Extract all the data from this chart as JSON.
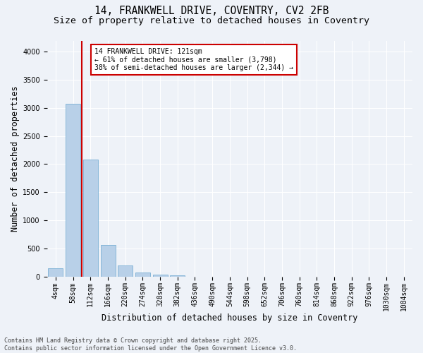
{
  "title_line1": "14, FRANKWELL DRIVE, COVENTRY, CV2 2FB",
  "title_line2": "Size of property relative to detached houses in Coventry",
  "xlabel": "Distribution of detached houses by size in Coventry",
  "ylabel": "Number of detached properties",
  "categories": [
    "4sqm",
    "58sqm",
    "112sqm",
    "166sqm",
    "220sqm",
    "274sqm",
    "328sqm",
    "382sqm",
    "436sqm",
    "490sqm",
    "544sqm",
    "598sqm",
    "652sqm",
    "706sqm",
    "760sqm",
    "814sqm",
    "868sqm",
    "922sqm",
    "976sqm",
    "1030sqm",
    "1084sqm"
  ],
  "values": [
    150,
    3080,
    2080,
    560,
    190,
    75,
    35,
    20,
    0,
    0,
    0,
    0,
    0,
    0,
    0,
    0,
    0,
    0,
    0,
    0,
    0
  ],
  "bar_color": "#b8d0e8",
  "bar_edge_color": "#7aafd4",
  "vline_color": "#cc0000",
  "annotation_text": "14 FRANKWELL DRIVE: 121sqm\n← 61% of detached houses are smaller (3,798)\n38% of semi-detached houses are larger (2,344) →",
  "annotation_box_color": "#ffffff",
  "annotation_border_color": "#cc0000",
  "ylim": [
    0,
    4200
  ],
  "yticks": [
    0,
    500,
    1000,
    1500,
    2000,
    2500,
    3000,
    3500,
    4000
  ],
  "footer_text": "Contains HM Land Registry data © Crown copyright and database right 2025.\nContains public sector information licensed under the Open Government Licence v3.0.",
  "bg_color": "#eef2f8",
  "title_fontsize": 10.5,
  "subtitle_fontsize": 9.5,
  "tick_fontsize": 7,
  "label_fontsize": 8.5,
  "footer_fontsize": 6
}
